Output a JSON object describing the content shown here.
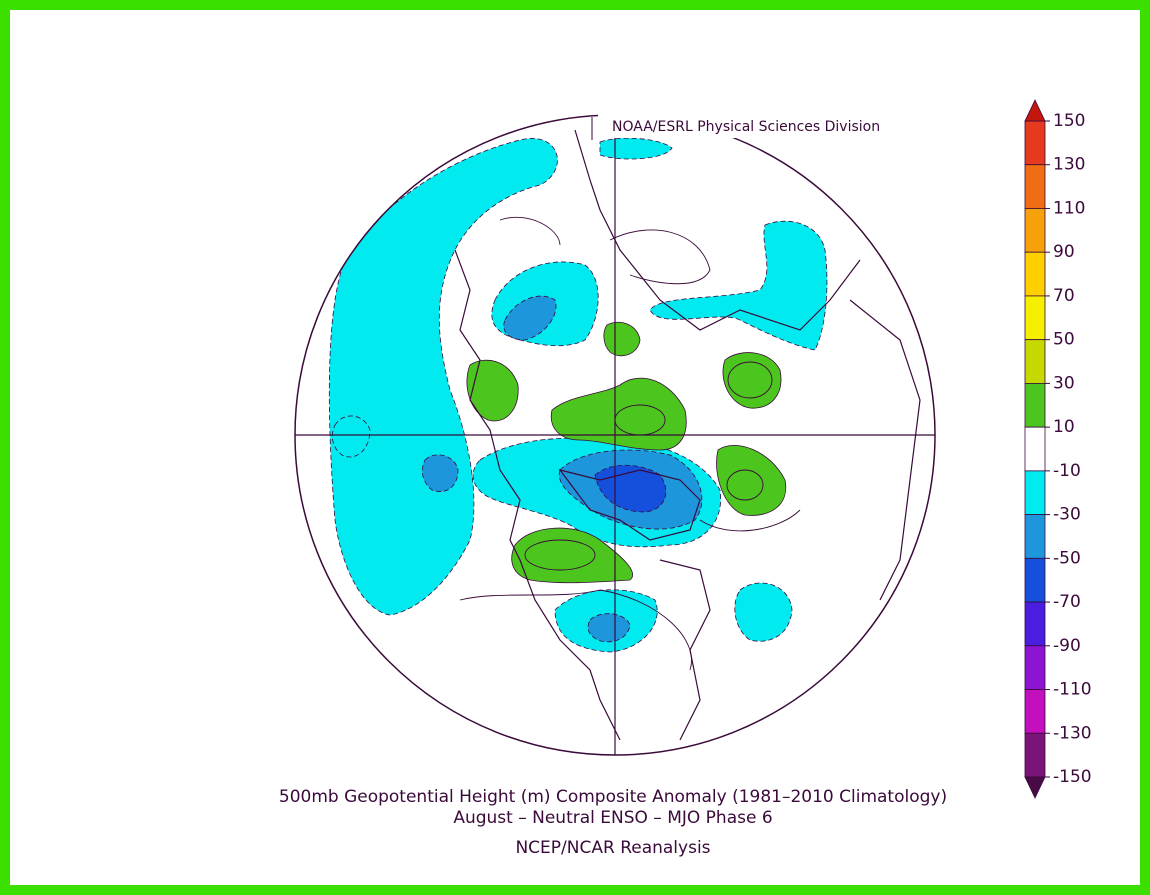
{
  "header": {
    "credit": "NOAA/ESRL Physical Sciences Division"
  },
  "colorbar": {
    "ticks": [
      150,
      130,
      110,
      90,
      70,
      50,
      30,
      10,
      -10,
      -30,
      -50,
      -70,
      -90,
      -110,
      -130,
      -150
    ],
    "colors": [
      "#e63a1e",
      "#f06d14",
      "#f7a10a",
      "#ffcf00",
      "#f5f000",
      "#c6d800",
      "#4cc61e",
      "#ffffff",
      "#00eaf0",
      "#1e96dc",
      "#1450dc",
      "#4a1ee0",
      "#8c14d2",
      "#c40fbe",
      "#7a1478"
    ],
    "over_color": "#c3160f",
    "under_color": "#4a0a48"
  },
  "footer": {
    "title": "500mb Geopotential Height (m) Composite Anomaly (1981–2010 Climatology)",
    "subtitle": "August – Neutral ENSO – MJO Phase 6",
    "source": "NCEP/NCAR Reanalysis"
  }
}
